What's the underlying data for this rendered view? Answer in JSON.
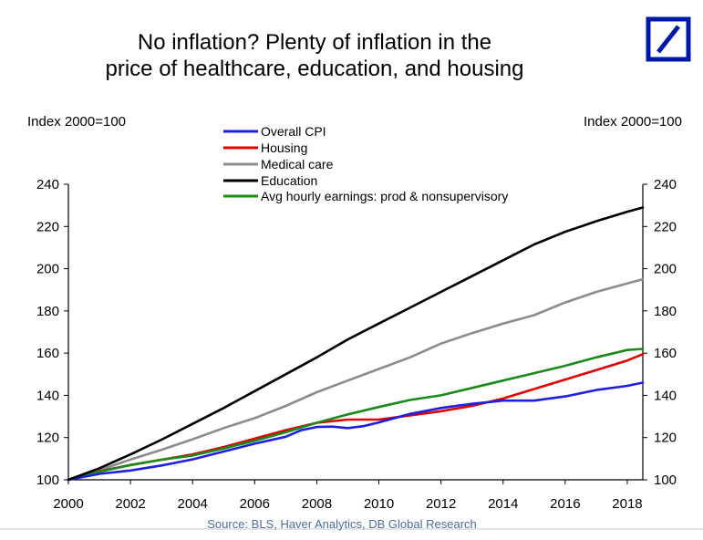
{
  "chart_data": {
    "type": "line",
    "title_lines": [
      "No inflation? Plenty of inflation in the",
      "price of healthcare, education, and housing"
    ],
    "ylabel_left": "Index 2000=100",
    "ylabel_right": "Index 2000=100",
    "ylim": [
      100,
      240
    ],
    "yticks": [
      100,
      120,
      140,
      160,
      180,
      200,
      220,
      240
    ],
    "xlim": [
      2000,
      2018.5
    ],
    "xticks": [
      2000,
      2002,
      2004,
      2006,
      2008,
      2010,
      2012,
      2014,
      2016,
      2018
    ],
    "legend_position": "top-center",
    "source": "Source: BLS, Haver Analytics, DB Global Research",
    "series": [
      {
        "name": "Overall CPI",
        "color": "#1f1fe0",
        "x": [
          2000,
          2001,
          2002,
          2003,
          2004,
          2005,
          2006,
          2007,
          2007.5,
          2008,
          2008.5,
          2009,
          2009.5,
          2010,
          2011,
          2012,
          2013,
          2014,
          2015,
          2016,
          2017,
          2018,
          2018.5
        ],
        "y": [
          100,
          102.8,
          104.4,
          106.8,
          109.7,
          113.4,
          117.1,
          120.4,
          123.5,
          125,
          125.2,
          124.5,
          125.4,
          127.2,
          131.2,
          134,
          136,
          137.5,
          137.5,
          139.5,
          142.5,
          144.5,
          146
        ]
      },
      {
        "name": "Housing",
        "color": "#e00000",
        "x": [
          2000,
          2001,
          2002,
          2003,
          2004,
          2005,
          2006,
          2007,
          2008,
          2009,
          2010,
          2011,
          2012,
          2013,
          2014,
          2015,
          2016,
          2017,
          2018,
          2018.5
        ],
        "y": [
          100,
          104,
          107,
          109.5,
          112,
          115.5,
          119.5,
          123.5,
          127,
          128.5,
          128.5,
          130.5,
          132.5,
          135,
          138.5,
          143,
          147.5,
          152,
          156.5,
          159.5
        ]
      },
      {
        "name": "Medical care",
        "color": "#8c8c8c",
        "x": [
          2000,
          2001,
          2002,
          2003,
          2004,
          2005,
          2006,
          2007,
          2008,
          2009,
          2010,
          2011,
          2012,
          2013,
          2014,
          2015,
          2016,
          2017,
          2018,
          2018.5
        ],
        "y": [
          100,
          104.6,
          109.6,
          114.2,
          119.2,
          124.5,
          129.2,
          135,
          141.5,
          147,
          152.5,
          158,
          164.5,
          169.5,
          174,
          178,
          184,
          189,
          193,
          195
        ]
      },
      {
        "name": "Education",
        "color": "#000000",
        "x": [
          2000,
          2001,
          2002,
          2003,
          2004,
          2005,
          2006,
          2007,
          2008,
          2009,
          2010,
          2011,
          2012,
          2013,
          2014,
          2015,
          2016,
          2017,
          2018,
          2018.5
        ],
        "y": [
          100,
          105.5,
          112,
          119,
          126.5,
          134,
          142,
          150,
          158,
          166.5,
          174,
          181.5,
          189,
          196.5,
          204,
          211.5,
          217.5,
          222.5,
          227,
          229
        ]
      },
      {
        "name": "Avg hourly earnings: prod & nonsupervisory",
        "color": "#1a8a1a",
        "x": [
          2000,
          2001,
          2002,
          2003,
          2004,
          2005,
          2006,
          2007,
          2008,
          2009,
          2010,
          2011,
          2012,
          2013,
          2014,
          2015,
          2016,
          2017,
          2018,
          2018.5
        ],
        "y": [
          100,
          103.8,
          107,
          109.5,
          111.5,
          114.8,
          118.5,
          122.5,
          127,
          131,
          134.5,
          137.8,
          140,
          143.5,
          147,
          150.5,
          154,
          158,
          161.5,
          162
        ]
      }
    ]
  }
}
